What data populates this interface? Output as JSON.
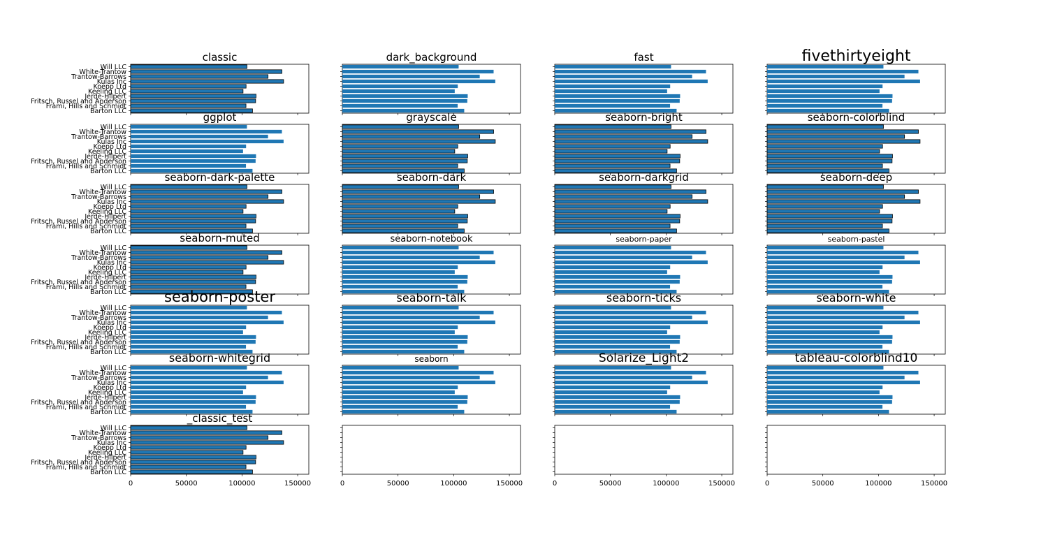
{
  "chart_data": {
    "type": "bar",
    "orientation": "horizontal",
    "layout_grid": "7 rows x 4 columns",
    "categories": [
      "Barton LLC",
      "Frami, Hills and Schmidt",
      "Fritsch, Russel and Anderson",
      "Jerde-Hilpert",
      "Keeling LLC",
      "Koepp Ltd",
      "Kulas Inc",
      "Trantow-Barrows",
      "White-Trantow",
      "Will LLC"
    ],
    "values": [
      109438,
      103569,
      112214,
      112591,
      100934,
      103660,
      137352,
      123381,
      135841,
      104437
    ],
    "xlim": [
      0,
      160000
    ],
    "xticks": [
      "0",
      "50000",
      "100000",
      "150000"
    ],
    "bar_color": "#1f77b4",
    "panels": [
      {
        "title": "classic",
        "title_size": 15,
        "show_labels": true,
        "edge": "#000000"
      },
      {
        "title": "dark_background",
        "title_size": 15,
        "show_labels": false,
        "edge": "none"
      },
      {
        "title": "fast",
        "title_size": 15,
        "show_labels": false,
        "edge": "none"
      },
      {
        "title": "fivethirtyeight",
        "title_size": 22,
        "show_labels": false,
        "edge": "none"
      },
      {
        "title": "ggplot",
        "title_size": 15,
        "show_labels": true,
        "edge": "none"
      },
      {
        "title": "grayscale",
        "title_size": 15,
        "show_labels": false,
        "edge": "#000000"
      },
      {
        "title": "seaborn-bright",
        "title_size": 15,
        "show_labels": false,
        "edge": "#000000"
      },
      {
        "title": "seaborn-colorblind",
        "title_size": 15,
        "show_labels": false,
        "edge": "#000000"
      },
      {
        "title": "seaborn-dark-palette",
        "title_size": 15,
        "show_labels": true,
        "edge": "#000000"
      },
      {
        "title": "seaborn-dark",
        "title_size": 15,
        "show_labels": false,
        "edge": "#000000"
      },
      {
        "title": "seaborn-darkgrid",
        "title_size": 15,
        "show_labels": false,
        "edge": "#000000"
      },
      {
        "title": "seaborn-deep",
        "title_size": 15,
        "show_labels": false,
        "edge": "#000000"
      },
      {
        "title": "seaborn-muted",
        "title_size": 15,
        "show_labels": true,
        "edge": "#000000"
      },
      {
        "title": "seaborn-notebook",
        "title_size": 13,
        "show_labels": false,
        "edge": "none"
      },
      {
        "title": "seaborn-paper",
        "title_size": 11,
        "show_labels": false,
        "edge": "none"
      },
      {
        "title": "seaborn-pastel",
        "title_size": 11,
        "show_labels": false,
        "edge": "none"
      },
      {
        "title": "seaborn-poster",
        "title_size": 21,
        "show_labels": true,
        "edge": "none"
      },
      {
        "title": "seaborn-talk",
        "title_size": 16,
        "show_labels": false,
        "edge": "none"
      },
      {
        "title": "seaborn-ticks",
        "title_size": 16,
        "show_labels": false,
        "edge": "none"
      },
      {
        "title": "seaborn-white",
        "title_size": 16,
        "show_labels": false,
        "edge": "none"
      },
      {
        "title": "seaborn-whitegrid",
        "title_size": 16,
        "show_labels": true,
        "edge": "none"
      },
      {
        "title": "seaborn",
        "title_size": 12,
        "show_labels": false,
        "edge": "none"
      },
      {
        "title": "Solarize_Light2",
        "title_size": 17,
        "show_labels": false,
        "edge": "none"
      },
      {
        "title": "tableau-colorblind10",
        "title_size": 17,
        "show_labels": false,
        "edge": "none"
      },
      {
        "title": "_classic_test",
        "title_size": 15,
        "show_labels": true,
        "edge": "#000000"
      },
      {
        "title": "",
        "title_size": 15,
        "show_labels": false,
        "edge": "none",
        "empty": true
      },
      {
        "title": "",
        "title_size": 15,
        "show_labels": false,
        "edge": "none",
        "empty": true
      },
      {
        "title": "",
        "title_size": 15,
        "show_labels": false,
        "edge": "none",
        "empty": true
      }
    ]
  }
}
